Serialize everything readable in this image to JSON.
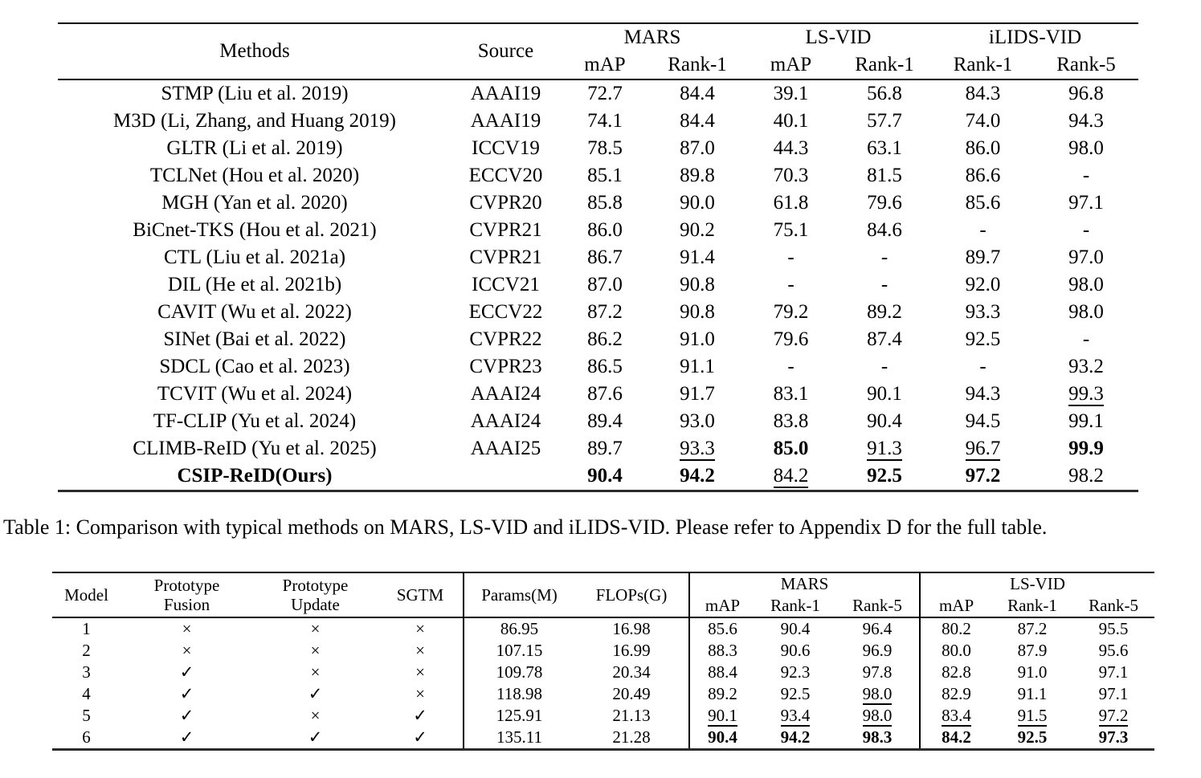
{
  "table1": {
    "caption": "Table 1: Comparison with typical methods on MARS, LS-VID and iLIDS-VID. Please refer to Appendix D for the full table.",
    "header": {
      "methods": "Methods",
      "source": "Source",
      "groups": [
        {
          "label": "MARS",
          "cols": [
            "mAP",
            "Rank-1"
          ]
        },
        {
          "label": "LS-VID",
          "cols": [
            "mAP",
            "Rank-1"
          ]
        },
        {
          "label": "iLIDS-VID",
          "cols": [
            "Rank-1",
            "Rank-5"
          ]
        }
      ]
    },
    "rows": [
      {
        "method": "STMP (Liu et al. 2019)",
        "source": "AAAI19",
        "bold": false,
        "values": [
          "72.7",
          "84.4",
          "39.1",
          "56.8",
          "84.3",
          "96.8"
        ],
        "styles": [
          "",
          "",
          "",
          "",
          "",
          ""
        ]
      },
      {
        "method": "M3D (Li, Zhang, and Huang 2019)",
        "source": "AAAI19",
        "bold": false,
        "values": [
          "74.1",
          "84.4",
          "40.1",
          "57.7",
          "74.0",
          "94.3"
        ],
        "styles": [
          "",
          "",
          "",
          "",
          "",
          ""
        ]
      },
      {
        "method": "GLTR (Li et al. 2019)",
        "source": "ICCV19",
        "bold": false,
        "values": [
          "78.5",
          "87.0",
          "44.3",
          "63.1",
          "86.0",
          "98.0"
        ],
        "styles": [
          "",
          "",
          "",
          "",
          "",
          ""
        ]
      },
      {
        "method": "TCLNet (Hou et al. 2020)",
        "source": "ECCV20",
        "bold": false,
        "values": [
          "85.1",
          "89.8",
          "70.3",
          "81.5",
          "86.6",
          "-"
        ],
        "styles": [
          "",
          "",
          "",
          "",
          "",
          ""
        ]
      },
      {
        "method": "MGH (Yan et al. 2020)",
        "source": "CVPR20",
        "bold": false,
        "values": [
          "85.8",
          "90.0",
          "61.8",
          "79.6",
          "85.6",
          "97.1"
        ],
        "styles": [
          "",
          "",
          "",
          "",
          "",
          ""
        ]
      },
      {
        "method": "BiCnet-TKS (Hou et al. 2021)",
        "source": "CVPR21",
        "bold": false,
        "values": [
          "86.0",
          "90.2",
          "75.1",
          "84.6",
          "-",
          "-"
        ],
        "styles": [
          "",
          "",
          "",
          "",
          "",
          ""
        ]
      },
      {
        "method": "CTL (Liu et al. 2021a)",
        "source": "CVPR21",
        "bold": false,
        "values": [
          "86.7",
          "91.4",
          "-",
          "-",
          "89.7",
          "97.0"
        ],
        "styles": [
          "",
          "",
          "",
          "",
          "",
          ""
        ]
      },
      {
        "method": "DIL (He et al. 2021b)",
        "source": "ICCV21",
        "bold": false,
        "values": [
          "87.0",
          "90.8",
          "-",
          "-",
          "92.0",
          "98.0"
        ],
        "styles": [
          "",
          "",
          "",
          "",
          "",
          ""
        ]
      },
      {
        "method": "CAVIT (Wu et al. 2022)",
        "source": "ECCV22",
        "bold": false,
        "values": [
          "87.2",
          "90.8",
          "79.2",
          "89.2",
          "93.3",
          "98.0"
        ],
        "styles": [
          "",
          "",
          "",
          "",
          "",
          ""
        ]
      },
      {
        "method": "SINet (Bai et al. 2022)",
        "source": "CVPR22",
        "bold": false,
        "values": [
          "86.2",
          "91.0",
          "79.6",
          "87.4",
          "92.5",
          "-"
        ],
        "styles": [
          "",
          "",
          "",
          "",
          "",
          ""
        ]
      },
      {
        "method": "SDCL (Cao et al. 2023)",
        "source": "CVPR23",
        "bold": false,
        "values": [
          "86.5",
          "91.1",
          "-",
          "-",
          "-",
          "93.2"
        ],
        "styles": [
          "",
          "",
          "",
          "",
          "",
          ""
        ]
      },
      {
        "method": "TCVIT (Wu et al. 2024)",
        "source": "AAAI24",
        "bold": false,
        "values": [
          "87.6",
          "91.7",
          "83.1",
          "90.1",
          "94.3",
          "99.3"
        ],
        "styles": [
          "",
          "",
          "",
          "",
          "",
          "u"
        ]
      },
      {
        "method": "TF-CLIP (Yu et al. 2024)",
        "source": "AAAI24",
        "bold": false,
        "values": [
          "89.4",
          "93.0",
          "83.8",
          "90.4",
          "94.5",
          "99.1"
        ],
        "styles": [
          "",
          "",
          "",
          "",
          "",
          ""
        ]
      },
      {
        "method": "CLIMB-ReID (Yu et al. 2025)",
        "source": "AAAI25",
        "bold": false,
        "values": [
          "89.7",
          "93.3",
          "85.0",
          "91.3",
          "96.7",
          "99.9"
        ],
        "styles": [
          "",
          "u",
          "b",
          "u",
          "u",
          "b"
        ]
      },
      {
        "method": "CSIP-ReID(Ours)",
        "source": "",
        "bold": true,
        "values": [
          "90.4",
          "94.2",
          "84.2",
          "92.5",
          "97.2",
          "98.2"
        ],
        "styles": [
          "b",
          "b",
          "u",
          "b",
          "b",
          ""
        ]
      }
    ]
  },
  "table2": {
    "header": {
      "model": "Model",
      "fusion": "Prototype Fusion",
      "update": "Prototype Update",
      "sgtm": "SGTM",
      "params": "Params(M)",
      "flops": "FLOPs(G)",
      "groups": [
        {
          "label": "MARS",
          "cols": [
            "mAP",
            "Rank-1",
            "Rank-5"
          ]
        },
        {
          "label": "LS-VID",
          "cols": [
            "mAP",
            "Rank-1",
            "Rank-5"
          ]
        }
      ]
    },
    "glyphs": {
      "yes": "✓",
      "no": "×"
    },
    "rows": [
      {
        "model": "1",
        "fusion": "×",
        "update": "×",
        "sgtm": "×",
        "params": "86.95",
        "flops": "16.98",
        "values": [
          "85.6",
          "90.4",
          "96.4",
          "80.2",
          "87.2",
          "95.5"
        ],
        "styles": [
          "",
          "",
          "",
          "",
          "",
          ""
        ]
      },
      {
        "model": "2",
        "fusion": "×",
        "update": "×",
        "sgtm": "×",
        "params": "107.15",
        "flops": "16.99",
        "values": [
          "88.3",
          "90.6",
          "96.9",
          "80.0",
          "87.9",
          "95.6"
        ],
        "styles": [
          "",
          "",
          "",
          "",
          "",
          ""
        ]
      },
      {
        "model": "3",
        "fusion": "✓",
        "update": "×",
        "sgtm": "×",
        "params": "109.78",
        "flops": "20.34",
        "values": [
          "88.4",
          "92.3",
          "97.8",
          "82.8",
          "91.0",
          "97.1"
        ],
        "styles": [
          "",
          "",
          "",
          "",
          "",
          ""
        ]
      },
      {
        "model": "4",
        "fusion": "✓",
        "update": "✓",
        "sgtm": "×",
        "params": "118.98",
        "flops": "20.49",
        "values": [
          "89.2",
          "92.5",
          "98.0",
          "82.9",
          "91.1",
          "97.1"
        ],
        "styles": [
          "",
          "",
          "u",
          "",
          "",
          ""
        ]
      },
      {
        "model": "5",
        "fusion": "✓",
        "update": "×",
        "sgtm": "✓",
        "params": "125.91",
        "flops": "21.13",
        "values": [
          "90.1",
          "93.4",
          "98.0",
          "83.4",
          "91.5",
          "97.2"
        ],
        "styles": [
          "u",
          "u",
          "u",
          "u",
          "u",
          "u"
        ]
      },
      {
        "model": "6",
        "fusion": "✓",
        "update": "✓",
        "sgtm": "✓",
        "params": "135.11",
        "flops": "21.28",
        "values": [
          "90.4",
          "94.2",
          "98.3",
          "84.2",
          "92.5",
          "97.3"
        ],
        "styles": [
          "b",
          "b",
          "b",
          "b",
          "b",
          "b"
        ]
      }
    ]
  }
}
